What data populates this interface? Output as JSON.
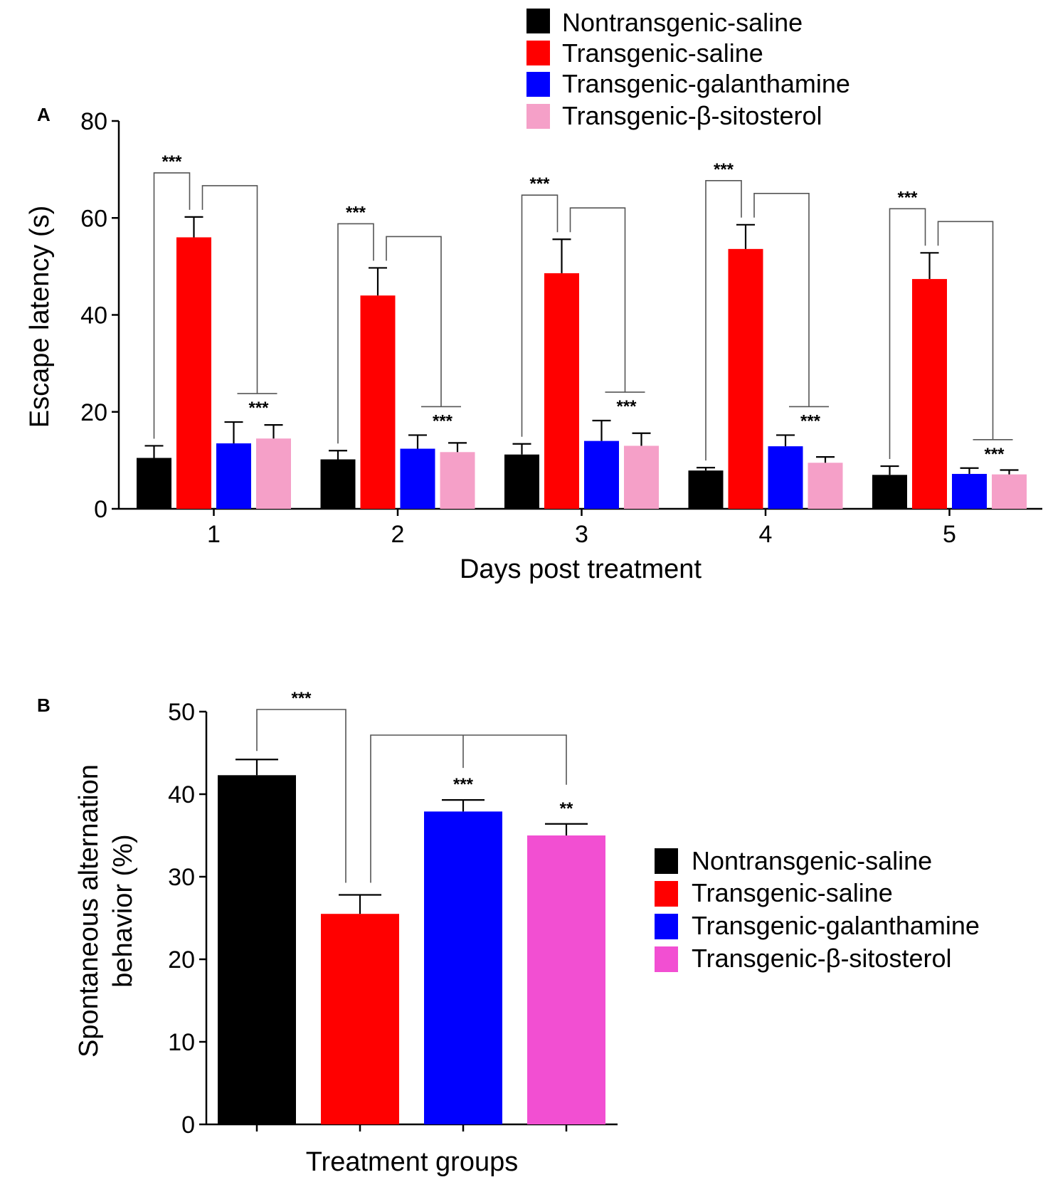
{
  "chart_data": [
    {
      "panel": "A",
      "type": "bar",
      "xlabel": "Days post treatment",
      "ylabel": "Escape latency (s)",
      "ylim": [
        0,
        80
      ],
      "yticks": [
        "0",
        "20",
        "40",
        "60",
        "80"
      ],
      "categories": [
        "1",
        "2",
        "3",
        "4",
        "5"
      ],
      "series": [
        {
          "name": "Nontransgenic-saline",
          "color": "#000000",
          "values": [
            10.5,
            10.2,
            11.2,
            7.9,
            7.0
          ],
          "errors": [
            2.5,
            1.8,
            2.2,
            0.6,
            1.8
          ]
        },
        {
          "name": "Transgenic-saline",
          "color": "#ff0000",
          "values": [
            56,
            44,
            48.6,
            53.6,
            47.4
          ],
          "errors": [
            4.2,
            5.7,
            7.0,
            5.0,
            5.4
          ]
        },
        {
          "name": "Transgenic-galanthamine",
          "color": "#0000ff",
          "values": [
            13.5,
            12.4,
            14.0,
            12.9,
            7.2
          ],
          "errors": [
            4.4,
            2.8,
            4.2,
            2.3,
            1.2
          ]
        },
        {
          "name": "Transgenic-β-sitosterol",
          "color": "#f5a0c8",
          "values": [
            14.5,
            11.7,
            13.0,
            9.5,
            7.1
          ],
          "errors": [
            2.8,
            1.9,
            2.6,
            1.2,
            0.9
          ]
        }
      ],
      "annotations": [
        "***",
        "***",
        "***",
        "***",
        "***",
        "***",
        "***",
        "***",
        "***",
        "***"
      ],
      "legend_position": "top-right"
    },
    {
      "panel": "B",
      "type": "bar",
      "xlabel": "Treatment groups",
      "ylabel": [
        "Spontaneous alternation",
        "behavior (%)"
      ],
      "ylim": [
        0,
        50
      ],
      "yticks": [
        "0",
        "10",
        "20",
        "30",
        "40",
        "50"
      ],
      "categories": [
        "Nontransgenic-saline",
        "Transgenic-saline",
        "Transgenic-galanthamine",
        "Transgenic-β-sitosterol"
      ],
      "values": [
        42.3,
        25.5,
        37.9,
        35.0
      ],
      "errors": [
        1.9,
        2.3,
        1.4,
        1.4
      ],
      "colors": [
        "#000000",
        "#ff0000",
        "#0000ff",
        "#f24fd2"
      ],
      "annotations": [
        "***",
        "***",
        "**"
      ],
      "legend_position": "right"
    }
  ]
}
